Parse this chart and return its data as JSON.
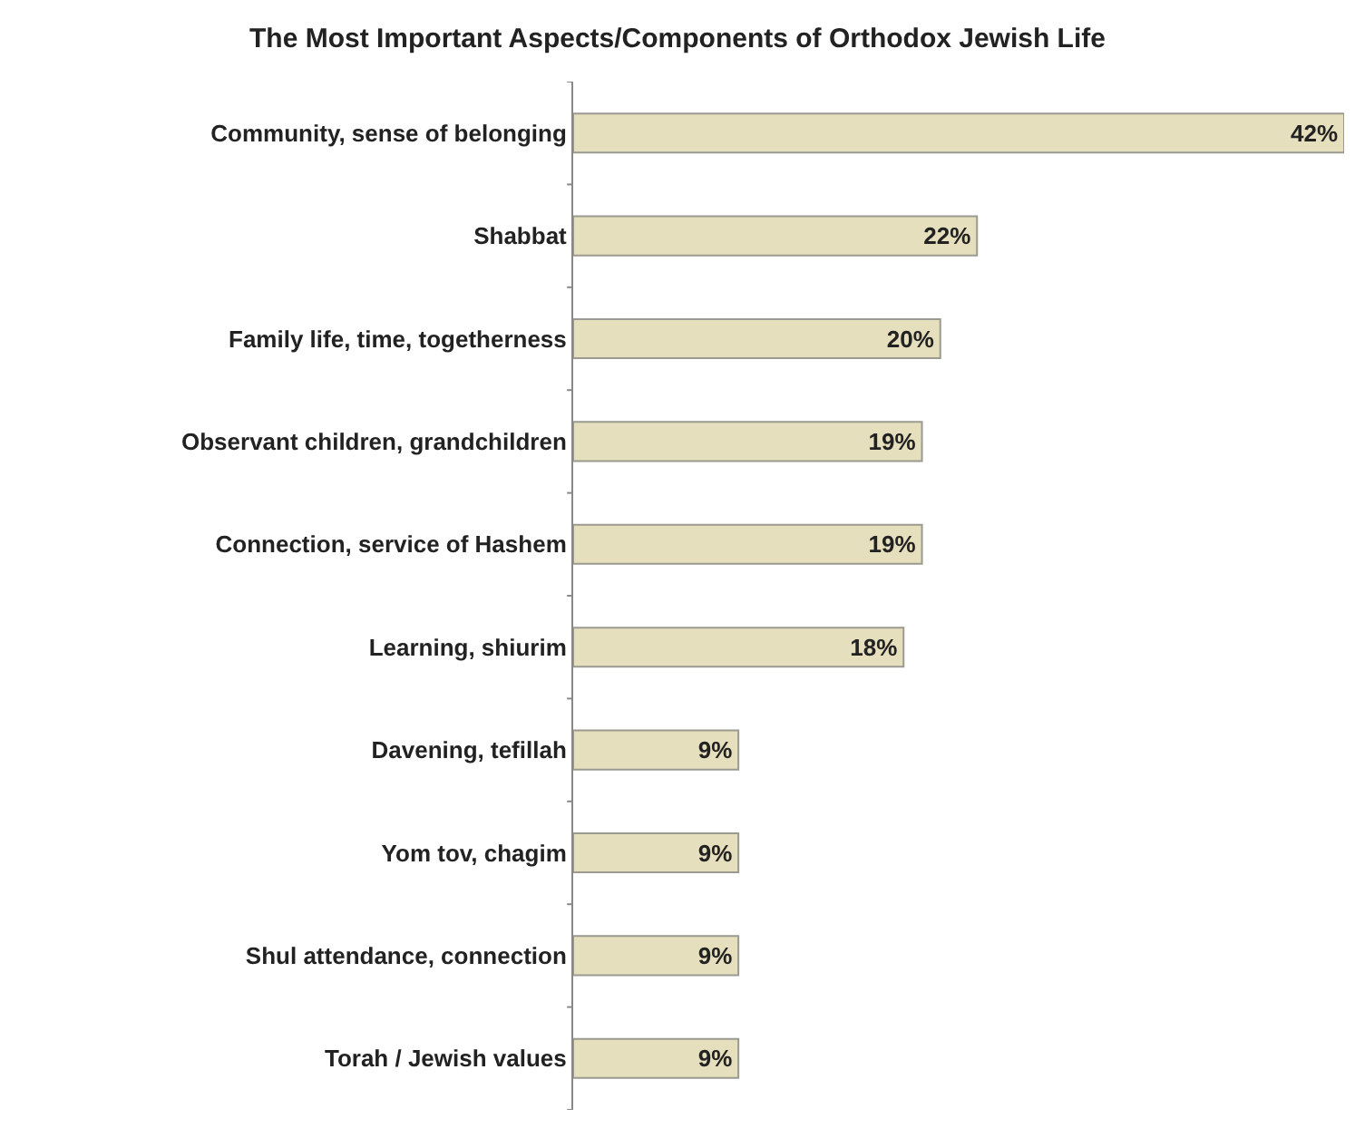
{
  "chart_data": {
    "type": "bar",
    "orientation": "horizontal",
    "title": "The Most Important Aspects/Components of Orthodox Jewish Life",
    "categories": [
      "Community, sense of belonging",
      "Shabbat",
      "Family life, time, togetherness",
      "Observant children, grandchildren",
      "Connection, service of Hashem",
      "Learning, shiurim",
      "Davening, tefillah",
      "Yom tov, chagim",
      "Shul attendance, connection",
      "Torah / Jewish values"
    ],
    "values": [
      42,
      22,
      20,
      19,
      19,
      18,
      9,
      9,
      9,
      9
    ],
    "value_labels": [
      "42%",
      "22%",
      "20%",
      "19%",
      "19%",
      "18%",
      "9%",
      "9%",
      "9%",
      "9%"
    ],
    "color": "#e6dfbd",
    "xlim": [
      0,
      42
    ],
    "grid": false,
    "legend": false
  }
}
